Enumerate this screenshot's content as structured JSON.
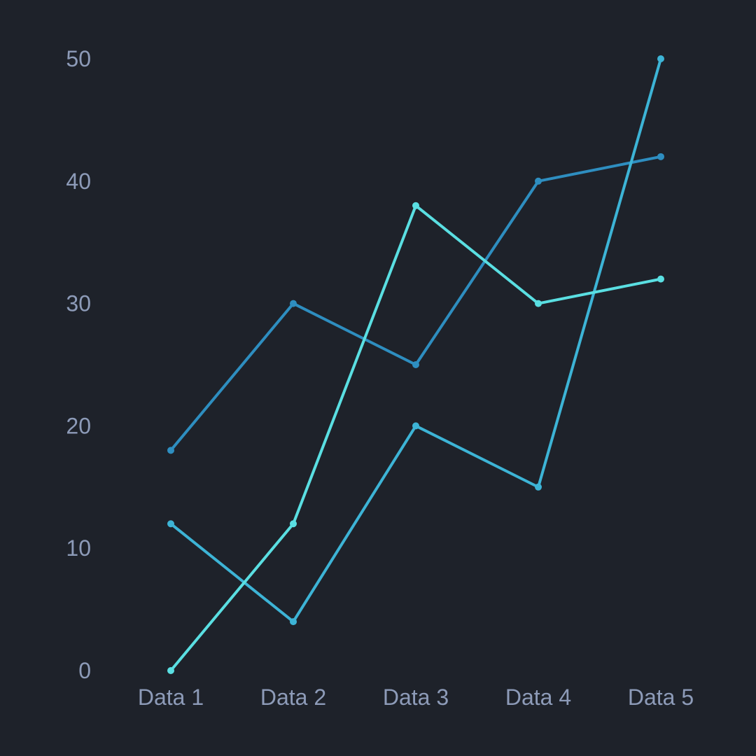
{
  "theme": {
    "background": "#1E222A",
    "tick_label_color": "#8D9BB8"
  },
  "chart_data": {
    "type": "line",
    "title": "",
    "xlabel": "",
    "ylabel": "",
    "categories": [
      "Data 1",
      "Data 2",
      "Data 3",
      "Data 4",
      "Data 5"
    ],
    "y_ticks": [
      "0",
      "10",
      "20",
      "30",
      "40",
      "50"
    ],
    "ylim": [
      0,
      50
    ],
    "grid": false,
    "legend": "none",
    "series": [
      {
        "values": [
          18,
          30,
          25,
          40,
          42
        ],
        "color": "#2E8EC0"
      },
      {
        "values": [
          12,
          4,
          20,
          15,
          50
        ],
        "color": "#3DB4D6"
      },
      {
        "values": [
          0,
          12,
          38,
          30,
          32
        ],
        "color": "#5ADFE2"
      }
    ]
  }
}
